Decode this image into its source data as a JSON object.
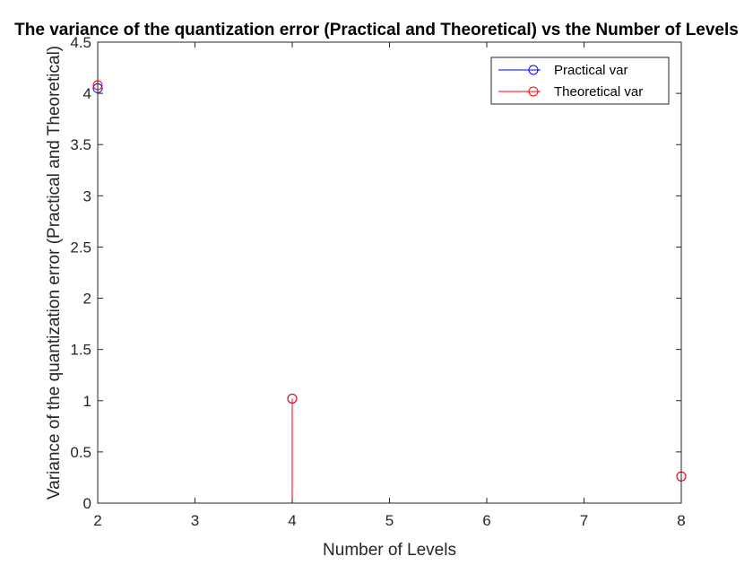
{
  "chart_data": {
    "type": "stem",
    "title": "The variance of the quantization error (Practical and Theoretical) vs the Number of Levels",
    "xlabel": "Number of Levels",
    "ylabel": "Variance of the quantization error (Practical and Theoretical)",
    "xlim": [
      2,
      8
    ],
    "ylim": [
      0,
      4.5
    ],
    "x_ticks": [
      2,
      3,
      4,
      5,
      6,
      7,
      8
    ],
    "y_ticks": [
      0,
      0.5,
      1,
      1.5,
      2,
      2.5,
      3,
      3.5,
      4,
      4.5
    ],
    "x_tick_labels": [
      "2",
      "3",
      "4",
      "5",
      "6",
      "7",
      "8"
    ],
    "y_tick_labels": [
      "0",
      "0.5",
      "1",
      "1.5",
      "2",
      "2.5",
      "3",
      "3.5",
      "4",
      "4.5"
    ],
    "grid": false,
    "legend_position": "top-right",
    "series": [
      {
        "name": "Practical var",
        "color": "#0000ff",
        "x": [
          2,
          4,
          8
        ],
        "y": [
          4.05,
          1.02,
          0.26
        ]
      },
      {
        "name": "Theoretical var",
        "color": "#ff0000",
        "x": [
          2,
          4,
          8
        ],
        "y": [
          4.08,
          1.02,
          0.26
        ]
      }
    ]
  }
}
